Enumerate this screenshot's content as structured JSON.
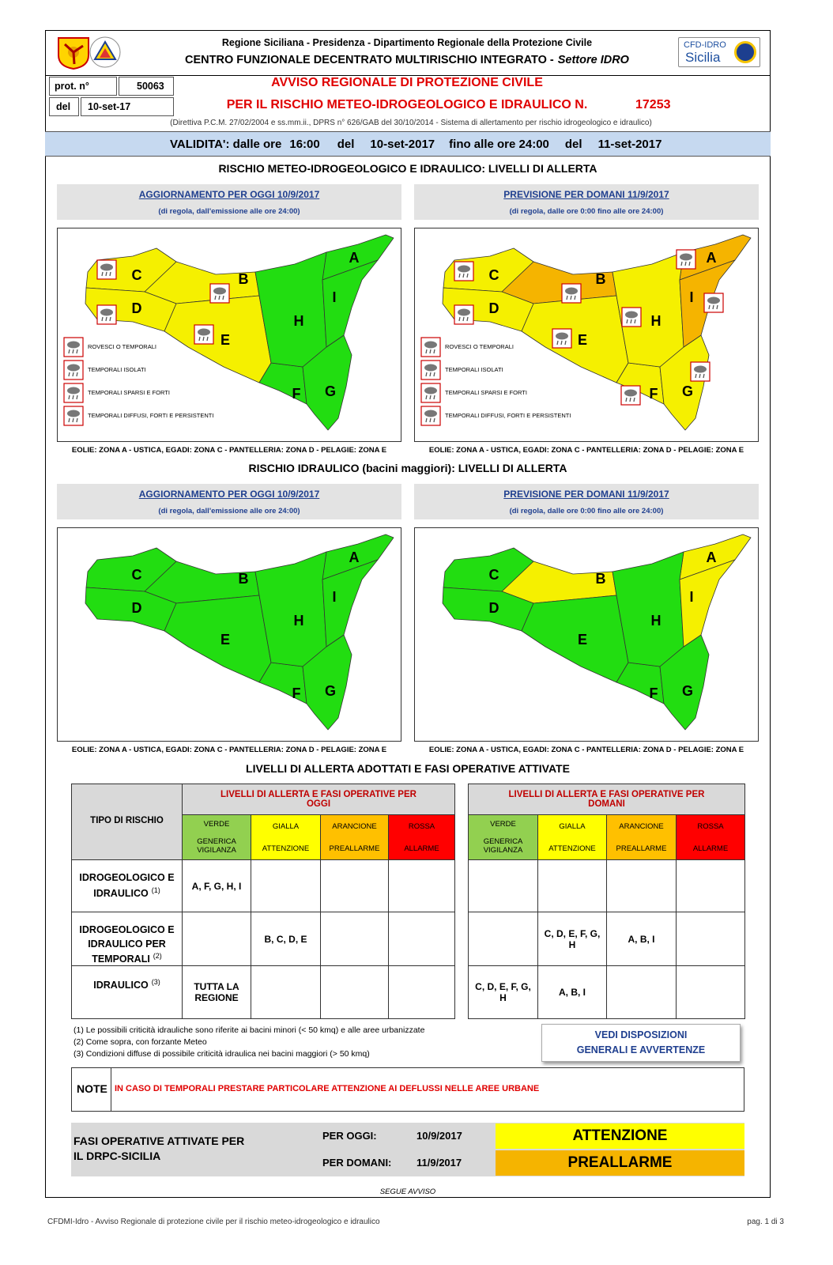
{
  "header": {
    "org": "Regione Siciliana - Presidenza - Dipartimento Regionale della Protezione Civile",
    "centre": "CENTRO FUNZIONALE DECENTRATO MULTIRISCHIO INTEGRATO -",
    "sector": "Settore IDRO",
    "badge": [
      "CFD-IDRO",
      "Sicilia"
    ]
  },
  "protocol": {
    "number_label": "prot. n°",
    "number": "50063",
    "date_label": "del",
    "date": "10-set-17"
  },
  "title": {
    "line1": "AVVISO REGIONALE DI PROTEZIONE CIVILE",
    "line2": "PER IL RISCHIO METEO-IDROGEOLOGICO E IDRAULICO N.",
    "number": "17253",
    "directive": "(Direttiva P.C.M. 27/02/2004 e ss.mm.ii., DPRS n° 626/GAB del 30/10/2014 - Sistema di allertamento per rischio idrogeologico e idraulico)"
  },
  "validity": [
    "VALIDITA': dalle ore",
    "16:00",
    "del",
    "10-set-2017",
    "fino alle ore 24:00",
    "del",
    "11-set-2017"
  ],
  "sections": [
    {
      "title": "RISCHIO METEO-IDROGEOLOGICO E IDRAULICO: LIVELLI DI ALLERTA",
      "legend": [
        "ROVESCI O TEMPORALI",
        "TEMPORALI ISOLATI",
        "TEMPORALI SPARSI E FORTI",
        "TEMPORALI DIFFUSI, FORTI E PERSISTENTI"
      ],
      "panels": [
        {
          "heading": "AGGIORNAMENTO PER OGGI 10/9/2017",
          "note": "(di regola, dall'emissione alle ore 24:00)",
          "zones": [
            {
              "label": "A",
              "color": "#22dd11"
            },
            {
              "label": "B",
              "color": "#f5f000"
            },
            {
              "label": "C",
              "color": "#f5f000"
            },
            {
              "label": "D",
              "color": "#f5f000"
            },
            {
              "label": "E",
              "color": "#f5f000"
            },
            {
              "label": "F",
              "color": "#22dd11"
            },
            {
              "label": "G",
              "color": "#22dd11"
            },
            {
              "label": "H",
              "color": "#22dd11"
            },
            {
              "label": "I",
              "color": "#22dd11"
            }
          ]
        },
        {
          "heading": "PREVISIONE PER DOMANI 11/9/2017",
          "note": "(di regola, dalle ore 0:00 fino alle ore 24:00)",
          "zones": [
            {
              "label": "A",
              "color": "#f5b400"
            },
            {
              "label": "B",
              "color": "#f5b400"
            },
            {
              "label": "C",
              "color": "#f5f000"
            },
            {
              "label": "D",
              "color": "#f5f000"
            },
            {
              "label": "E",
              "color": "#f5f000"
            },
            {
              "label": "F",
              "color": "#f5f000"
            },
            {
              "label": "G",
              "color": "#f5f000"
            },
            {
              "label": "H",
              "color": "#f5f000"
            },
            {
              "label": "I",
              "color": "#f5b400"
            }
          ]
        }
      ]
    },
    {
      "title": "RISCHIO IDRAULICO (bacini maggiori): LIVELLI DI ALLERTA",
      "panels": [
        {
          "heading": "AGGIORNAMENTO PER OGGI 10/9/2017",
          "note": "(di regola, dall'emissione alle ore 24:00)",
          "zones": [
            {
              "label": "A",
              "color": "#22dd11"
            },
            {
              "label": "B",
              "color": "#22dd11"
            },
            {
              "label": "C",
              "color": "#22dd11"
            },
            {
              "label": "D",
              "color": "#22dd11"
            },
            {
              "label": "E",
              "color": "#22dd11"
            },
            {
              "label": "F",
              "color": "#22dd11"
            },
            {
              "label": "G",
              "color": "#22dd11"
            },
            {
              "label": "H",
              "color": "#22dd11"
            },
            {
              "label": "I",
              "color": "#22dd11"
            }
          ]
        },
        {
          "heading": "PREVISIONE PER DOMANI 11/9/2017",
          "note": "(di regola, dalle ore 0:00 fino alle ore 24:00)",
          "zones": [
            {
              "label": "A",
              "color": "#f5f000"
            },
            {
              "label": "B",
              "color": "#f5f000"
            },
            {
              "label": "C",
              "color": "#22dd11"
            },
            {
              "label": "D",
              "color": "#22dd11"
            },
            {
              "label": "E",
              "color": "#22dd11"
            },
            {
              "label": "F",
              "color": "#22dd11"
            },
            {
              "label": "G",
              "color": "#22dd11"
            },
            {
              "label": "H",
              "color": "#22dd11"
            },
            {
              "label": "I",
              "color": "#f5f000"
            }
          ]
        }
      ]
    }
  ],
  "islands": "EOLIE: ZONA A - USTICA, EGADI: ZONA C - PANTELLERIA: ZONA D - PELAGIE: ZONA E",
  "summary": {
    "title": "LIVELLI DI ALLERTA ADOTTATI E FASI OPERATIVE ATTIVATE",
    "type_header": "TIPO DI RISCHIO",
    "groups": [
      "LIVELLI DI ALLERTA E FASI OPERATIVE PER OGGI",
      "LIVELLI DI ALLERTA E FASI OPERATIVE PER DOMANI"
    ],
    "levels": [
      {
        "name": "VERDE",
        "phase": "GENERICA VIGILANZA",
        "color": "#92d050"
      },
      {
        "name": "GIALLA",
        "phase": "ATTENZIONE",
        "color": "#ffff00"
      },
      {
        "name": "ARANCIONE",
        "phase": "PREALLARME",
        "color": "#ffc000"
      },
      {
        "name": "ROSSA",
        "phase": "ALLARME",
        "color": "#ff0000"
      }
    ],
    "rows": [
      {
        "risk": "IDROGEOLOGICO E IDRAULICO",
        "ref": "(1)",
        "today": [
          "A, F, G, H, I",
          null,
          null,
          null
        ],
        "tomorrow": [
          null,
          null,
          null,
          null
        ]
      },
      {
        "risk": "IDROGEOLOGICO E IDRAULICO PER TEMPORALI",
        "ref": "(2)",
        "today": [
          null,
          "B, C, D, E",
          null,
          null
        ],
        "tomorrow": [
          null,
          "C, D, E, F, G, H",
          "A, B, I",
          null
        ]
      },
      {
        "risk": "IDRAULICO",
        "ref": "(3)",
        "today": [
          "TUTTA LA REGIONE",
          null,
          null,
          null
        ],
        "tomorrow": [
          "C, D, E, F, G, H",
          "A, B, I",
          null,
          null
        ]
      }
    ],
    "footnotes": [
      "(1) Le possibili criticità idrauliche sono riferite ai bacini minori (< 50 kmq) e alle aree urbanizzate",
      "(2) Come sopra, con forzante Meteo",
      "(3) Condizioni diffuse di possibile criticità idraulica nei bacini maggiori (> 50 kmq)"
    ],
    "button": "VEDI DISPOSIZIONI GENERALI E AVVERTENZE"
  },
  "note": {
    "label": "NOTE",
    "text": "IN CASO DI TEMPORALI PRESTARE PARTICOLARE ATTENZIONE AI DEFLUSSI NELLE AREE URBANE"
  },
  "phases": {
    "label": "FASI OPERATIVE ATTIVATE PER IL DRPC-SICILIA",
    "rows": [
      {
        "when": "PER OGGI:",
        "date": "10/9/2017",
        "phase": "ATTENZIONE",
        "color": "#ffff00"
      },
      {
        "when": "PER DOMANI:",
        "date": "11/9/2017",
        "phase": "PREALLARME",
        "color": "#f5b400"
      }
    ]
  },
  "continues": "SEGUE AVVISO",
  "footer": {
    "text": "CFDMI-Idro - Avviso Regionale di protezione civile per il rischio meteo-idrogeologico e idraulico",
    "page": "pag. 1 di 3"
  }
}
